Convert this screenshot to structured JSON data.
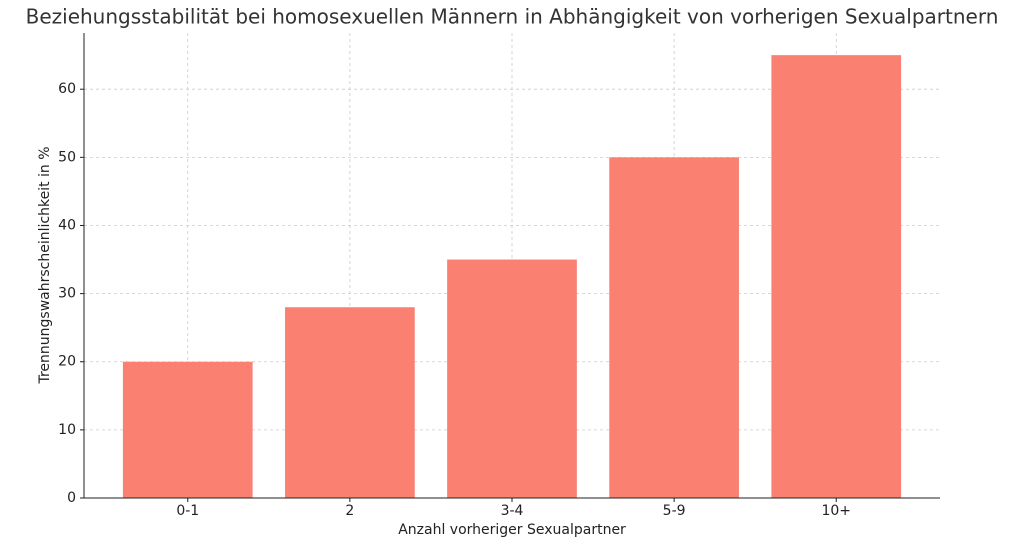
{
  "chart_data": {
    "type": "bar",
    "title": "Beziehungsstabilität bei homosexuellen Männern in Abhängigkeit von vorherigen Sexualpartnern",
    "x_label": "Anzahl vorheriger Sexualpartner",
    "y_label": "Trennungswahrscheinlichkeit in %",
    "categories": [
      "0-1",
      "2",
      "3-4",
      "5-9",
      "10+"
    ],
    "values": [
      20,
      28,
      35,
      50,
      65
    ],
    "color": "#fa8072",
    "ylim": [
      0,
      68.25
    ],
    "yticks": [
      0,
      10,
      20,
      30,
      40,
      50,
      60
    ],
    "grid": true
  }
}
